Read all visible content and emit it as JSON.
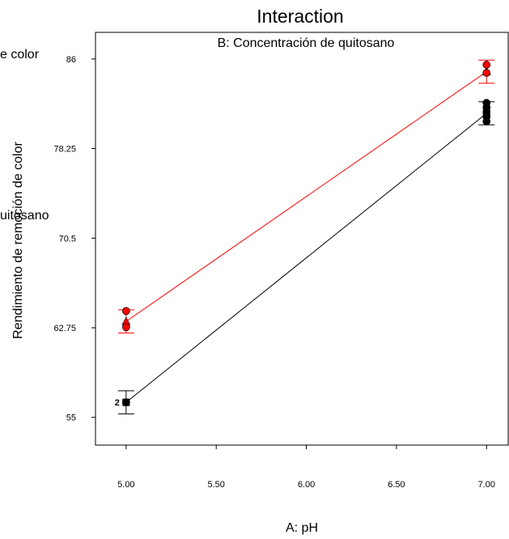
{
  "chart_data": {
    "type": "line",
    "title": "Interaction",
    "factor_label": "B: Concentración de quitosano",
    "xlabel": "A: pH",
    "ylabel": "Rendimiento de remoción de color",
    "cut_label_left_top": "e color",
    "cut_label_left_mid": "uitosano",
    "x_ticks": [
      "5.00",
      "5.50",
      "6.00",
      "6.50",
      "7.00"
    ],
    "y_ticks": [
      "55",
      "62.75",
      "70.5",
      "78.25",
      "86"
    ],
    "xlim": [
      4.83,
      7.12
    ],
    "ylim": [
      52.6,
      88.3
    ],
    "grid": false,
    "series": [
      {
        "color": "#ff0000",
        "marker": "triangle",
        "x": [
          5.0,
          7.0
        ],
        "y": [
          63.3,
          84.9
        ],
        "error_bars": [
          [
            62.3,
            64.3
          ],
          [
            83.9,
            85.9
          ]
        ],
        "points": [
          [
            5.0,
            64.2
          ],
          [
            5.0,
            62.8
          ],
          [
            7.0,
            85.5
          ],
          [
            7.0,
            84.8
          ]
        ]
      },
      {
        "color": "#000000",
        "marker": "square",
        "x": [
          5.0,
          7.0
        ],
        "y": [
          56.3,
          81.3
        ],
        "error_bars": [
          [
            55.3,
            57.3
          ],
          [
            80.3,
            82.3
          ]
        ],
        "points": [
          [
            5.0,
            56.3
          ],
          [
            7.0,
            82.2
          ],
          [
            7.0,
            81.8
          ],
          [
            7.0,
            81.4
          ],
          [
            7.0,
            81.0
          ],
          [
            7.0,
            80.6
          ]
        ],
        "point_labels": [
          {
            "text": "2",
            "x": 5.0,
            "y": 56.3
          }
        ]
      }
    ]
  }
}
